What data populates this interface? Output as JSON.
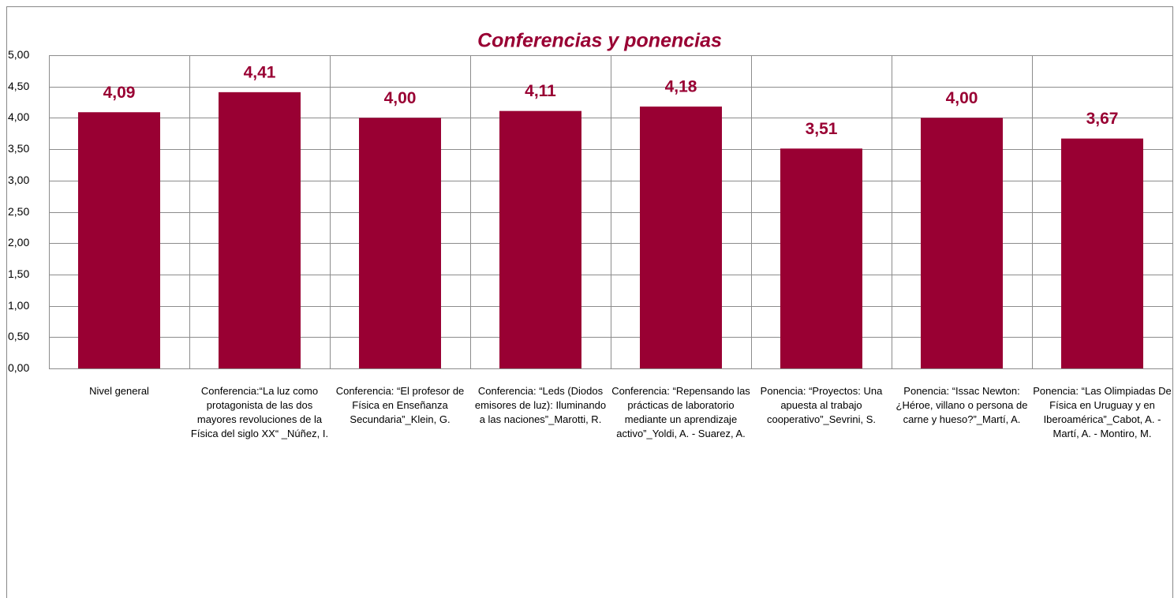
{
  "chart_data": {
    "type": "bar",
    "title": "Conferencias y ponencias",
    "categories": [
      "Nivel general",
      "Conferencia:“La luz como protagonista de las dos mayores revoluciones de la Física del siglo XX“ _Núñez, I.",
      "Conferencia: “El profesor de Física en Enseñanza Secundaria”_Klein, G.",
      "Conferencia: “Leds (Diodos emisores de luz): Iluminando a las naciones”_Marotti, R.",
      "Conferencia: “Repensando las prácticas de laboratorio mediante un aprendizaje activo”_Yoldi, A. - Suarez, A.",
      "Ponencia: “Proyectos: Una apuesta al trabajo cooperativo”_Sevrini, S.",
      "Ponencia: “Issac Newton: ¿Héroe, villano o persona de carne y hueso?”_Martí, A.",
      "Ponencia: “Las Olimpiadas De Física en Uruguay y en Iberoamérica”_Cabot, A. - Martí, A. - Montiro, M."
    ],
    "values": [
      4.09,
      4.41,
      4.0,
      4.11,
      4.18,
      3.51,
      4.0,
      3.67
    ],
    "value_labels": [
      "4,09",
      "4,41",
      "4,00",
      "4,11",
      "4,18",
      "3,51",
      "4,00",
      "3,67"
    ],
    "color": "#990033",
    "ylim": [
      0,
      5
    ],
    "yticks": [
      {
        "value": 0,
        "label": "0,00"
      },
      {
        "value": 0.5,
        "label": "0,50"
      },
      {
        "value": 1,
        "label": "1,00"
      },
      {
        "value": 1.5,
        "label": "1,50"
      },
      {
        "value": 2,
        "label": "2,00"
      },
      {
        "value": 2.5,
        "label": "2,50"
      },
      {
        "value": 3,
        "label": "3,00"
      },
      {
        "value": 3.5,
        "label": "3,50"
      },
      {
        "value": 4,
        "label": "4,00"
      },
      {
        "value": 4.5,
        "label": "4,50"
      },
      {
        "value": 5,
        "label": "5,00"
      }
    ],
    "grid": true
  }
}
